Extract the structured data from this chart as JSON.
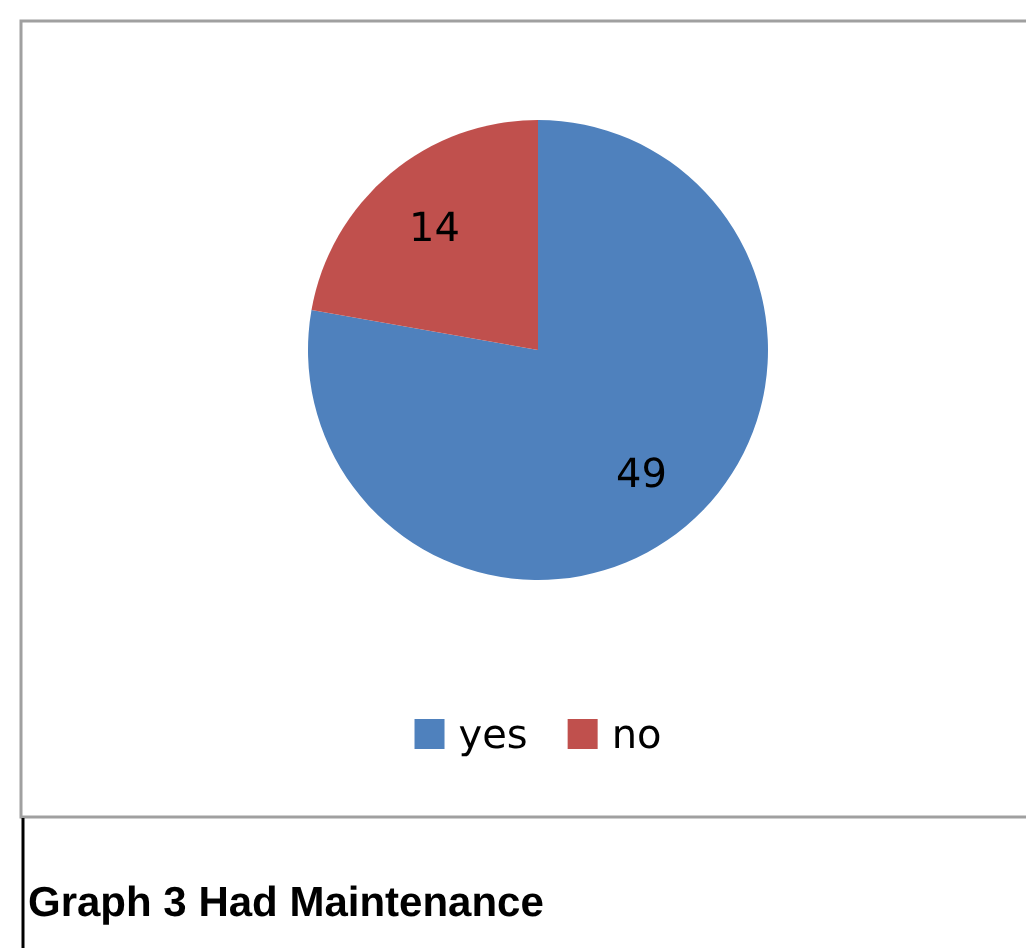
{
  "chart_data": {
    "type": "pie",
    "title": "Graph 3 Had Maintenance",
    "categories": [
      "yes",
      "no"
    ],
    "values": [
      49,
      14
    ],
    "colors": [
      "#4f81bd",
      "#c0504d"
    ],
    "data_labels": true,
    "legend": "bottom"
  }
}
